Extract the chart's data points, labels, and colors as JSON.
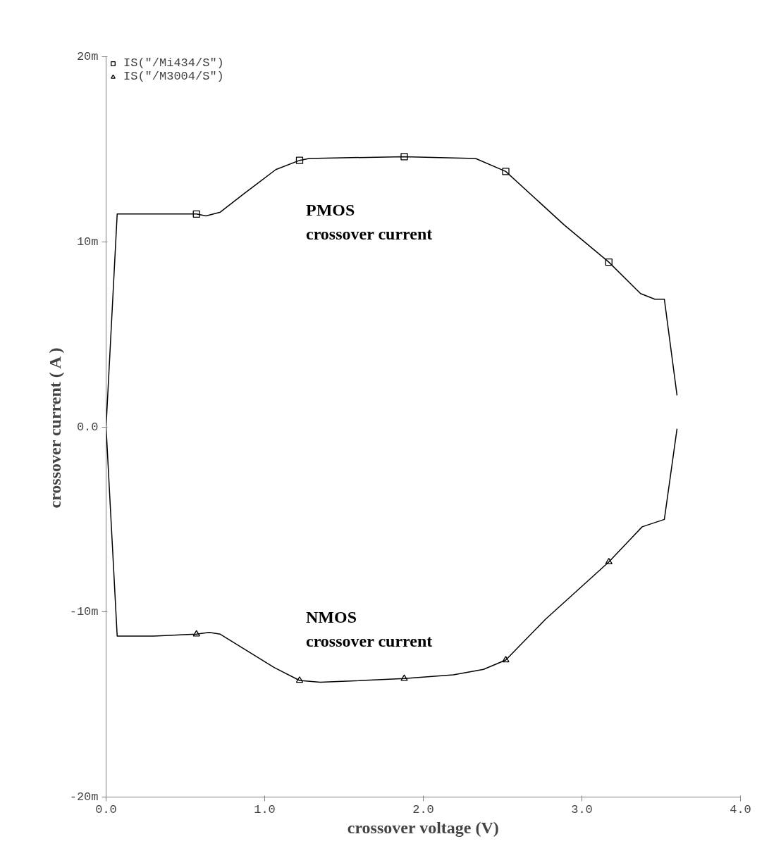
{
  "chart_data": {
    "type": "line",
    "xlabel": "crossover voltage (V)",
    "ylabel": "crossover current ( A )",
    "xlim": [
      0,
      4
    ],
    "ylim": [
      -20,
      20
    ],
    "xticks": [
      {
        "value": 0,
        "label": "0.0"
      },
      {
        "value": 1,
        "label": "1.0"
      },
      {
        "value": 2,
        "label": "2.0"
      },
      {
        "value": 3,
        "label": "3.0"
      },
      {
        "value": 4,
        "label": "4.0"
      }
    ],
    "yticks": [
      {
        "value": -20,
        "label": "-20m"
      },
      {
        "value": -10,
        "label": "-10m"
      },
      {
        "value": 0,
        "label": "0.0"
      },
      {
        "value": 10,
        "label": "10m"
      },
      {
        "value": 20,
        "label": "20m"
      }
    ],
    "grid": false,
    "legend": "top left",
    "series": [
      {
        "color": "#000000",
        "x": [
          3.6,
          3.52,
          3.38,
          3.17,
          2.77,
          2.52,
          2.38,
          2.19,
          1.88,
          1.35,
          1.22,
          1.06,
          0.72,
          0.65,
          0.57,
          0.3,
          0.07,
          0.0,
          0.07,
          0.57,
          0.63,
          0.72,
          0.87,
          1.07,
          1.22,
          1.28,
          1.88,
          2.33,
          2.52,
          2.89,
          3.17,
          3.37,
          3.46,
          3.52,
          3.6
        ],
        "values": [
          -0.1,
          -5.0,
          -5.4,
          -7.3,
          -10.4,
          -12.6,
          -13.1,
          -13.4,
          -13.6,
          -13.8,
          -13.7,
          -13.0,
          -11.2,
          -11.1,
          -11.2,
          -11.3,
          -11.3,
          0.0,
          11.5,
          11.5,
          11.4,
          11.6,
          12.6,
          13.9,
          14.4,
          14.5,
          14.6,
          14.5,
          13.8,
          10.9,
          8.9,
          7.2,
          6.9,
          6.9,
          1.7
        ]
      },
      {
        "type": "scatter",
        "name": "IS(\"/M3004/S\")",
        "color": "#000000",
        "marker": "triangle",
        "x": [
          0.57,
          1.22,
          1.88,
          2.52,
          3.17
        ],
        "values": [
          -11.2,
          -13.7,
          -13.6,
          -12.6,
          -7.3
        ]
      },
      {
        "type": "scatter",
        "name": "IS(\"/Mi434/S\")",
        "color": "#000000",
        "marker": "square",
        "x": [
          0.57,
          1.22,
          1.88,
          2.52,
          3.17
        ],
        "values": [
          11.5,
          14.4,
          14.6,
          13.8,
          8.9
        ]
      }
    ],
    "annotations": [
      "PMOS\ncrossover current",
      "NMOS\ncrossover current"
    ]
  }
}
